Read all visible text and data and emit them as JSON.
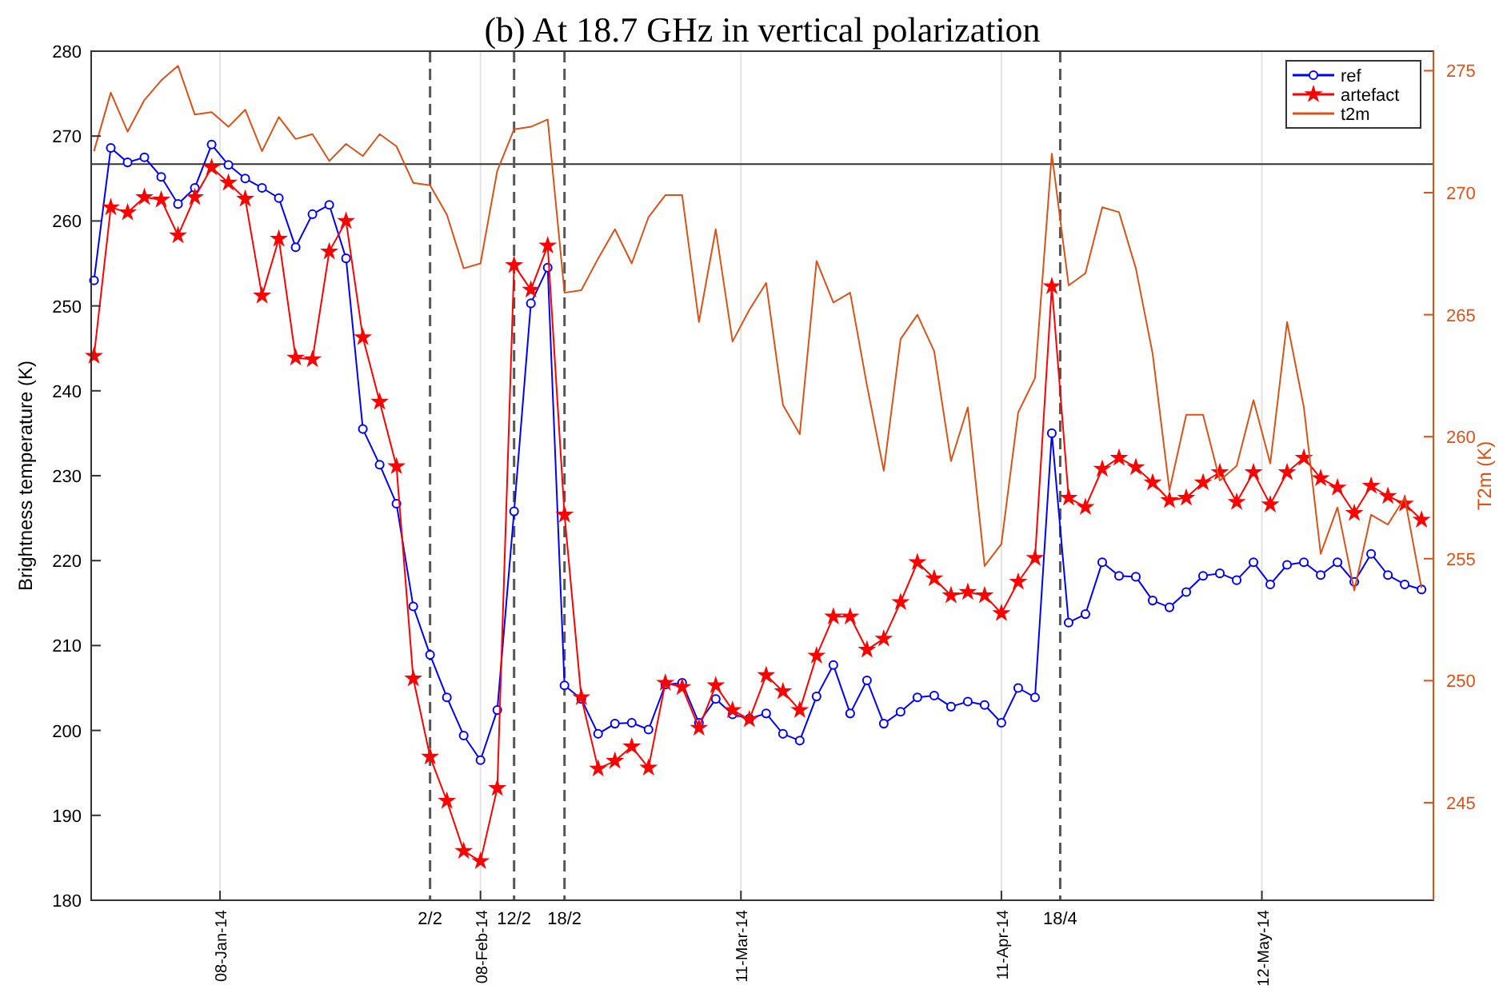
{
  "chart_data": {
    "type": "line",
    "title": "(b) At 18.7 GHz in vertical polarization",
    "ylabel": "Brightness temperature (K)",
    "y2label": "T2m (K)",
    "x": [
      "2013-12-24",
      "2013-12-26",
      "2013-12-28",
      "2013-12-30",
      "2014-01-01",
      "2014-01-03",
      "2014-01-05",
      "2014-01-07",
      "2014-01-09",
      "2014-01-11",
      "2014-01-13",
      "2014-01-15",
      "2014-01-17",
      "2014-01-19",
      "2014-01-21",
      "2014-01-23",
      "2014-01-25",
      "2014-01-27",
      "2014-01-29",
      "2014-01-31",
      "2014-02-02",
      "2014-02-04",
      "2014-02-06",
      "2014-02-08",
      "2014-02-10",
      "2014-02-12",
      "2014-02-14",
      "2014-02-16",
      "2014-02-18",
      "2014-02-20",
      "2014-02-22",
      "2014-02-24",
      "2014-02-26",
      "2014-02-28",
      "2014-03-02",
      "2014-03-04",
      "2014-03-06",
      "2014-03-08",
      "2014-03-10",
      "2014-03-12",
      "2014-03-14",
      "2014-03-16",
      "2014-03-18",
      "2014-03-20",
      "2014-03-22",
      "2014-03-24",
      "2014-03-26",
      "2014-03-28",
      "2014-03-30",
      "2014-04-01",
      "2014-04-03",
      "2014-04-05",
      "2014-04-07",
      "2014-04-09",
      "2014-04-11",
      "2014-04-13",
      "2014-04-15",
      "2014-04-17",
      "2014-04-19",
      "2014-04-21",
      "2014-04-23",
      "2014-04-25",
      "2014-04-27",
      "2014-04-29",
      "2014-05-01",
      "2014-05-03",
      "2014-05-05",
      "2014-05-07",
      "2014-05-09",
      "2014-05-11",
      "2014-05-13",
      "2014-05-15",
      "2014-05-17",
      "2014-05-19",
      "2014-05-21",
      "2014-05-23",
      "2014-05-25",
      "2014-05-27",
      "2014-05-29",
      "2014-05-31"
    ],
    "xlim": [
      "2013-12-23T16:00",
      "2014-06-01T10:00"
    ],
    "xticks": [
      {
        "value": "2014-01-08",
        "label": "08-Jan-14"
      },
      {
        "value": "2014-02-08",
        "label": "08-Feb-14"
      },
      {
        "value": "2014-03-11",
        "label": "11-Mar-14"
      },
      {
        "value": "2014-04-11",
        "label": "11-Apr-14"
      },
      {
        "value": "2014-05-12",
        "label": "12-May-14"
      }
    ],
    "ylim": [
      180,
      280
    ],
    "yticks": [
      180,
      190,
      200,
      210,
      220,
      230,
      240,
      250,
      260,
      270,
      280
    ],
    "y2lim": [
      241,
      275.8
    ],
    "y2ticks": [
      245,
      250,
      255,
      260,
      265,
      270,
      275
    ],
    "grid": "x",
    "legend": "top right",
    "series": [
      {
        "name": "ref",
        "color": "#0000ff",
        "marker": "circle",
        "values": [
          253,
          268.6,
          266.9,
          267.5,
          265.2,
          262,
          263.9,
          269,
          266.6,
          265,
          263.9,
          262.7,
          256.9,
          260.8,
          261.9,
          255.6,
          235.5,
          231.3,
          226.7,
          214.6,
          208.9,
          203.9,
          199.4,
          196.5,
          202.4,
          225.8,
          250.3,
          254.5,
          205.3,
          203.7,
          199.6,
          200.8,
          200.9,
          200.1,
          205.4,
          205.6,
          200.9,
          203.7,
          201.9,
          201.4,
          202,
          199.6,
          198.8,
          204,
          207.7,
          202,
          205.9,
          200.8,
          202.2,
          203.9,
          204.1,
          202.8,
          203.4,
          203,
          200.9,
          205,
          203.9,
          235,
          212.7,
          213.7,
          219.8,
          218.2,
          218.1,
          215.3,
          214.5,
          216.3,
          218.2,
          218.5,
          217.7,
          219.8,
          217.2,
          219.5,
          219.8,
          218.3,
          219.8,
          217.5,
          220.8,
          218.3,
          217.2,
          216.6
        ]
      },
      {
        "name": "artefact",
        "color": "#ff0000",
        "marker": "star",
        "values": [
          244.1,
          261.6,
          261,
          262.8,
          262.5,
          258.3,
          262.8,
          266.3,
          264.5,
          262.6,
          251.2,
          257.9,
          243.9,
          243.7,
          256.4,
          260,
          246.3,
          238.7,
          231.1,
          206.1,
          196.9,
          191.7,
          185.8,
          184.6,
          193.2,
          254.8,
          251.9,
          257.1,
          225.4,
          203.9,
          195.5,
          196.4,
          198.1,
          195.6,
          205.6,
          205.1,
          200.3,
          205.3,
          202.4,
          201.3,
          206.5,
          204.6,
          202.4,
          208.8,
          213.4,
          213.4,
          209.5,
          210.8,
          215.1,
          219.8,
          217.9,
          215.9,
          216.3,
          215.9,
          213.8,
          217.5,
          220.3,
          252.3,
          227.4,
          226.3,
          230.8,
          232.1,
          231,
          229.2,
          227.1,
          227.4,
          229.2,
          230.4,
          226.9,
          230.4,
          226.6,
          230.4,
          232.1,
          229.7,
          228.6,
          225.6,
          228.8,
          227.6,
          226.7,
          224.8
        ]
      },
      {
        "name": "t2m",
        "color": "#d95319",
        "axis": "y2",
        "values": [
          271.7,
          274.1,
          272.5,
          273.8,
          274.6,
          275.2,
          273.2,
          273.3,
          272.7,
          273.4,
          271.7,
          273.1,
          272.2,
          272.4,
          271.3,
          272,
          271.5,
          272.4,
          271.9,
          270.4,
          270.3,
          269.1,
          266.9,
          267.1,
          270.9,
          272.6,
          272.7,
          273,
          265.9,
          266,
          267.3,
          268.5,
          267.1,
          269,
          269.9,
          269.9,
          264.7,
          268.5,
          263.9,
          265.2,
          266.3,
          261.3,
          260.1,
          267.2,
          265.5,
          265.9,
          262.1,
          258.6,
          264,
          265,
          263.5,
          259,
          261.2,
          254.7,
          255.6,
          261,
          262.4,
          271.6,
          266.2,
          266.7,
          269.4,
          269.2,
          266.9,
          263.4,
          257.8,
          260.9,
          260.9,
          258.2,
          258.8,
          261.5,
          258.9,
          264.7,
          261.2,
          255.2,
          257.1,
          253.7,
          256.8,
          256.4,
          257.5,
          253.8
        ]
      }
    ],
    "ref_lines": [
      {
        "axis": "y",
        "value": 266.7,
        "color": "#333333",
        "line_style": "solid"
      },
      {
        "axis": "x",
        "value": "2014-02-02",
        "label": "2/2",
        "color": "#555555",
        "line_style": "dashed"
      },
      {
        "axis": "x",
        "value": "2014-02-12",
        "label": "12/2",
        "color": "#555555",
        "line_style": "dashed"
      },
      {
        "axis": "x",
        "value": "2014-02-18",
        "label": "18/2",
        "color": "#555555",
        "line_style": "dashed"
      },
      {
        "axis": "x",
        "value": "2014-04-18",
        "label": "18/4",
        "color": "#555555",
        "line_style": "dashed"
      }
    ]
  }
}
